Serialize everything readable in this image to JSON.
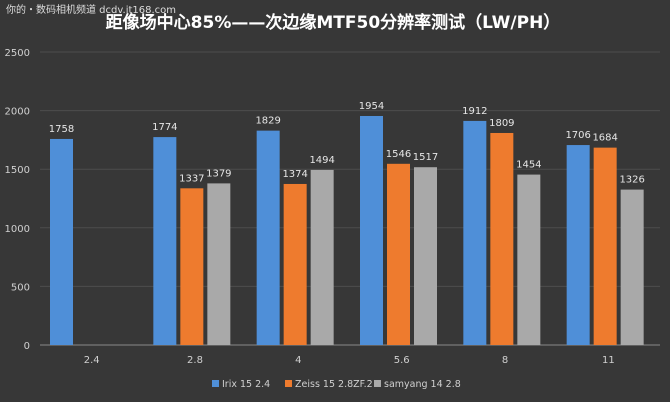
{
  "watermark": "你的・数码相机频道 dcdv.it168.com",
  "chart_data": {
    "type": "bar",
    "title": "距像场中心85%——次边缘MTF50分辨率测试（LW/PH）",
    "categories": [
      "2.4",
      "2.8",
      "4",
      "5.6",
      "8",
      "11"
    ],
    "series": [
      {
        "name": "Irix 15 2.4",
        "color": "#4f8fd8",
        "values": [
          1758,
          1774,
          1829,
          1954,
          1912,
          1706
        ]
      },
      {
        "name": "Zeiss 15 2.8ZF.2",
        "color": "#ee7b2e",
        "values": [
          null,
          1337,
          1374,
          1546,
          1809,
          1684
        ]
      },
      {
        "name": "samyang 14 2.8",
        "color": "#a9a9a9",
        "values": [
          null,
          1379,
          1494,
          1517,
          1454,
          1326
        ]
      }
    ],
    "yticks": [
      "0",
      "500",
      "1000",
      "1500",
      "2000",
      "2500"
    ],
    "ylim": [
      0,
      2500
    ],
    "grid": true,
    "legend_position": "bottom"
  }
}
